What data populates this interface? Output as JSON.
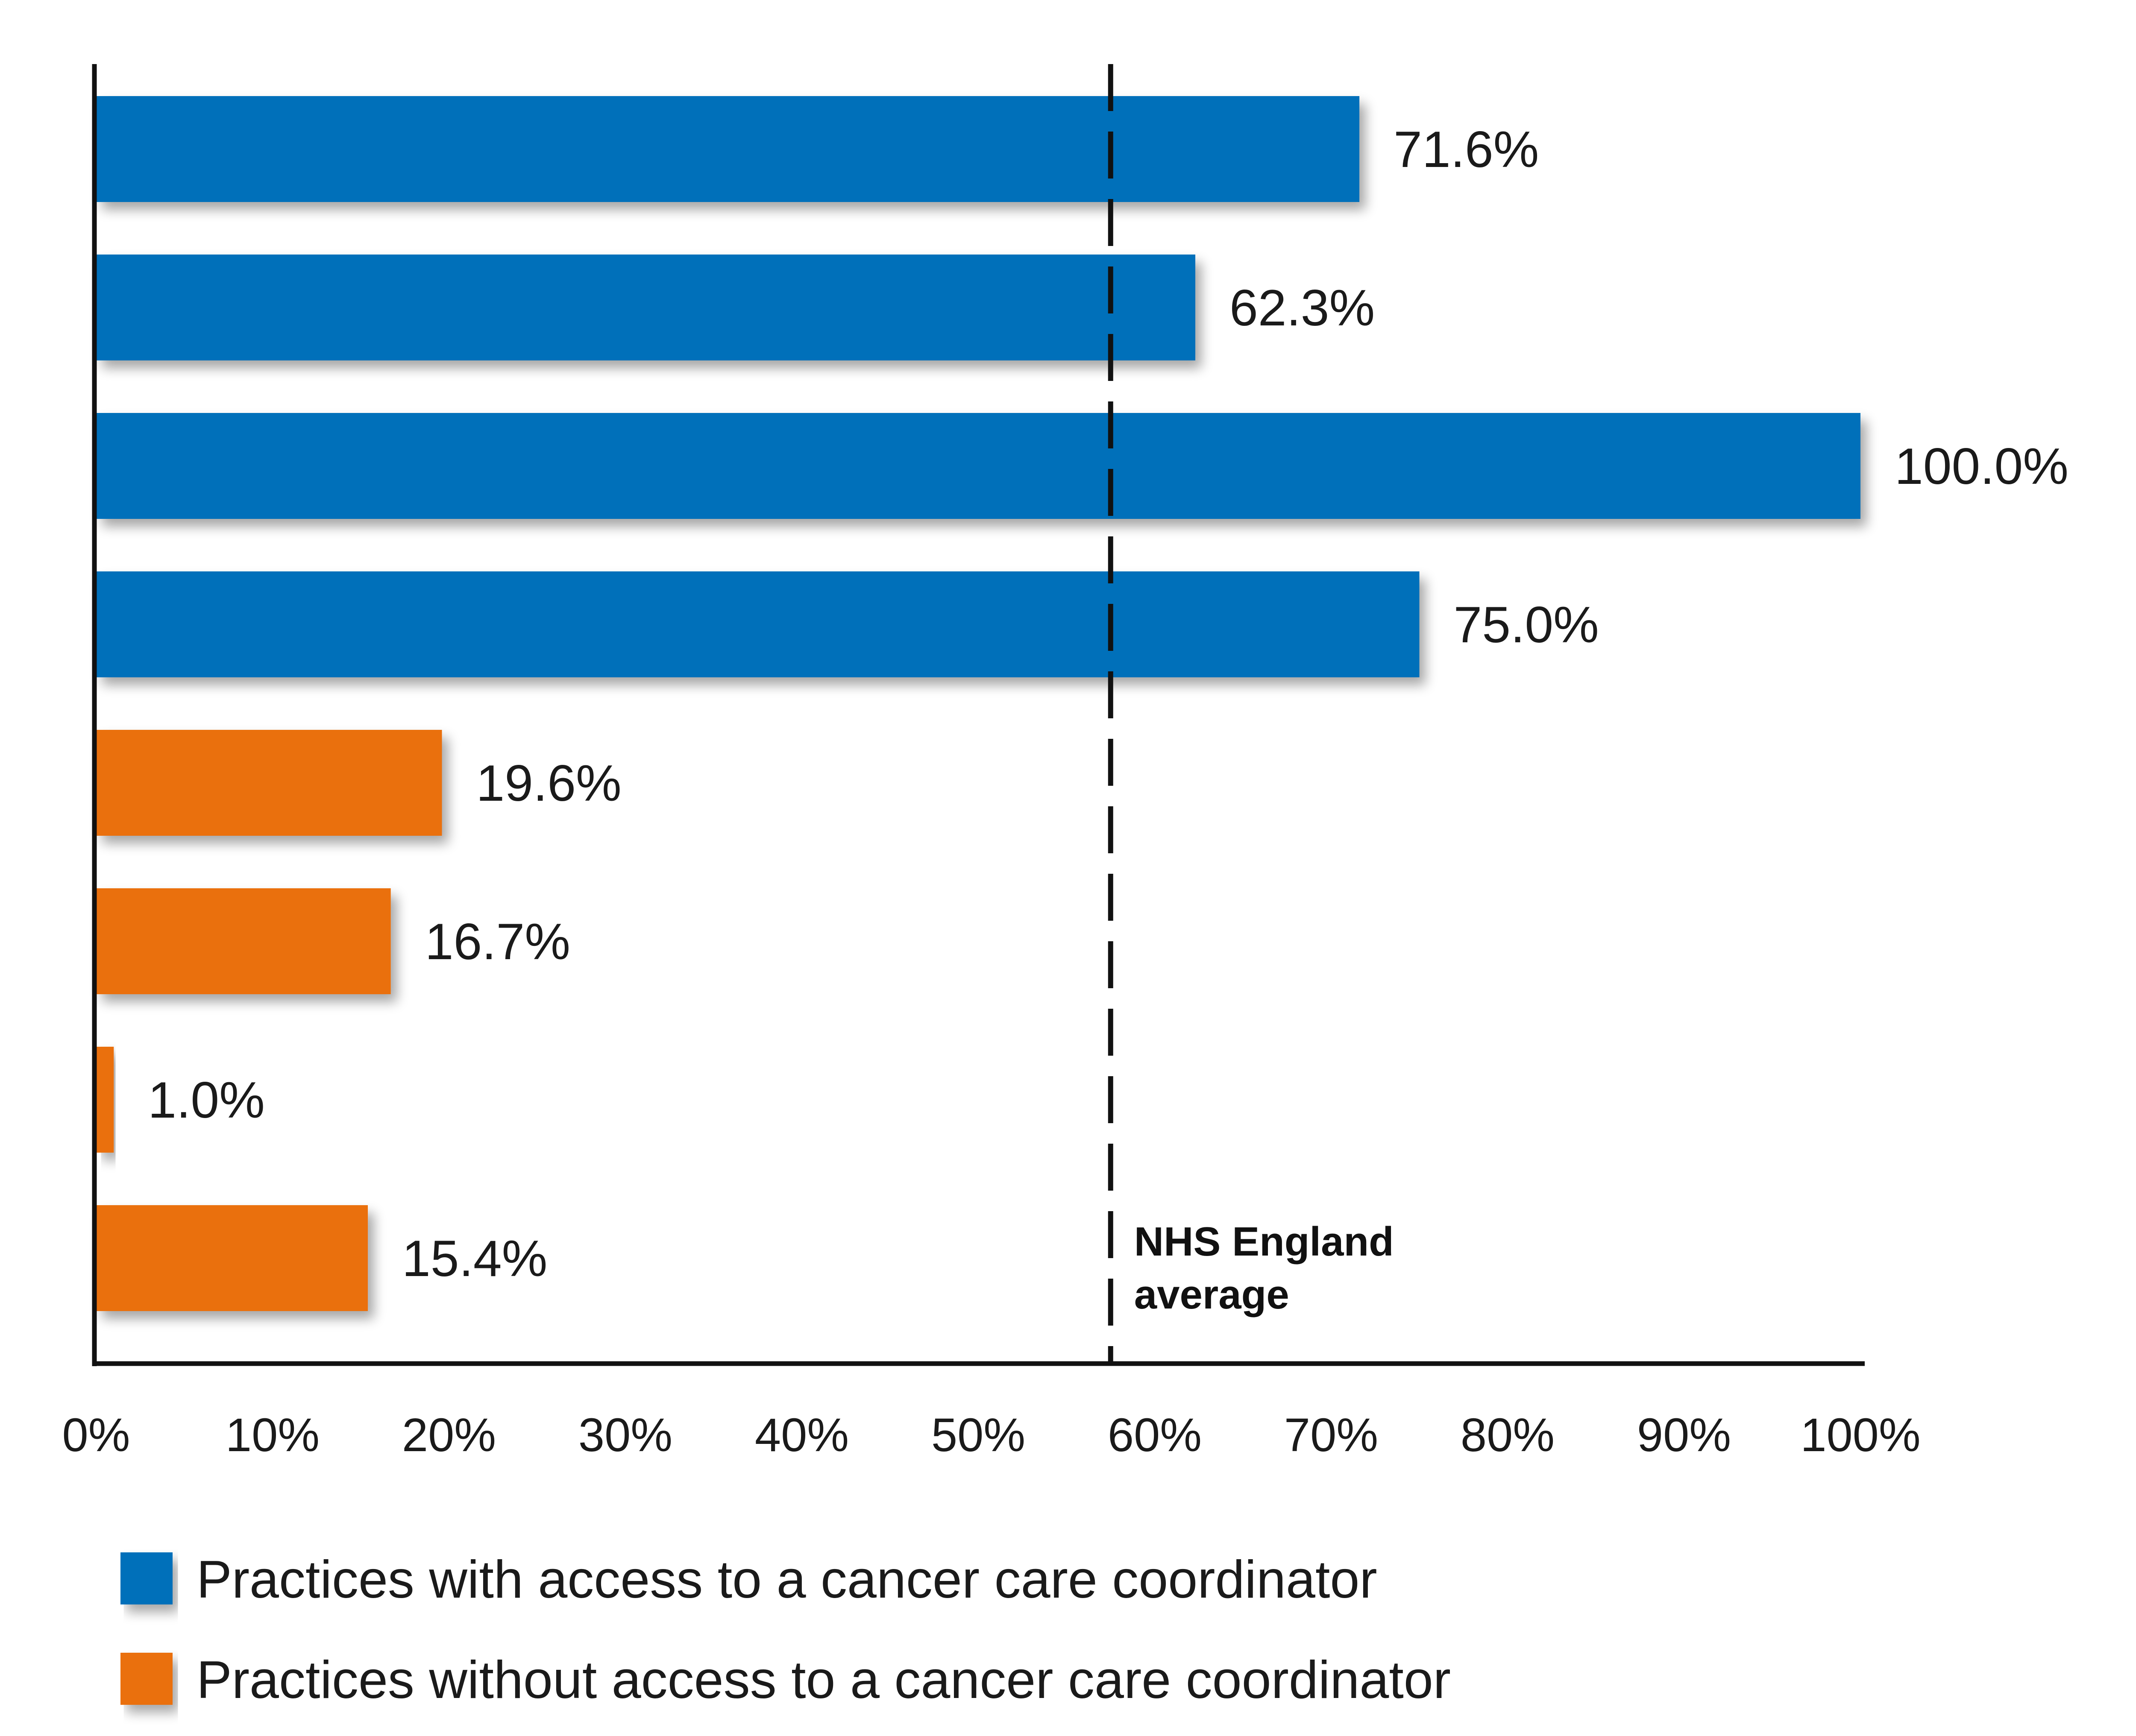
{
  "chart_data": {
    "type": "bar",
    "orientation": "horizontal",
    "bars": [
      {
        "value": 71.6,
        "label": "71.6%",
        "group": 0
      },
      {
        "value": 62.3,
        "label": "62.3%",
        "group": 0
      },
      {
        "value": 100.0,
        "label": "100.0%",
        "group": 0
      },
      {
        "value": 75.0,
        "label": "75.0%",
        "group": 0
      },
      {
        "value": 19.6,
        "label": "19.6%",
        "group": 1
      },
      {
        "value": 16.7,
        "label": "16.7%",
        "group": 1
      },
      {
        "value": 1.0,
        "label": "1.0%",
        "group": 1
      },
      {
        "value": 15.4,
        "label": "15.4%",
        "group": 1
      }
    ],
    "series": [
      {
        "name": "Practices with access to a cancer care coordinator",
        "color": "#0170BA"
      },
      {
        "name": "Practices without access to a cancer care coordinator",
        "color": "#EA6F10"
      }
    ],
    "xlim": [
      0,
      100
    ],
    "xticks": [
      0,
      10,
      20,
      30,
      40,
      50,
      60,
      70,
      80,
      90,
      100
    ],
    "xtick_labels": [
      "0%",
      "10%",
      "20%",
      "30%",
      "40%",
      "50%",
      "60%",
      "70%",
      "80%",
      "90%",
      "100%"
    ],
    "reference_line": {
      "value": 57.5,
      "label_lines": [
        "NHS England",
        "average"
      ],
      "style": "dashed"
    },
    "grid": false,
    "legend_position": "bottom-left"
  }
}
